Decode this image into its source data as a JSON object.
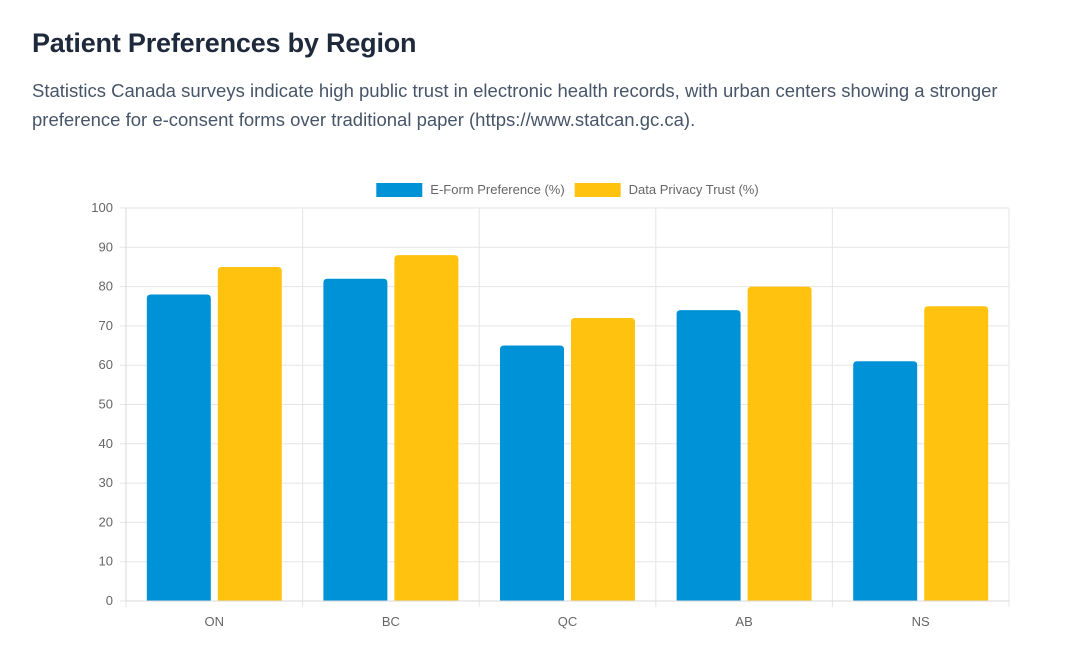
{
  "header": {
    "title": "Patient Preferences by Region",
    "description": "Statistics Canada surveys indicate high public trust in electronic health records, with urban centers showing a stronger preference for e-consent forms over traditional paper (https://www.statcan.gc.ca)."
  },
  "chart_data": {
    "type": "bar",
    "categories": [
      "ON",
      "BC",
      "QC",
      "AB",
      "NS"
    ],
    "series": [
      {
        "name": "E-Form Preference (%)",
        "values": [
          78,
          82,
          65,
          74,
          61
        ],
        "color": "#0092d6"
      },
      {
        "name": "Data Privacy Trust (%)",
        "values": [
          85,
          88,
          72,
          80,
          75
        ],
        "color": "#ffc30f"
      }
    ],
    "ylim": [
      0,
      100
    ],
    "yticks": [
      0,
      10,
      20,
      30,
      40,
      50,
      60,
      70,
      80,
      90,
      100
    ],
    "grid": true,
    "legend_position": "top",
    "title": "",
    "xlabel": "",
    "ylabel": ""
  }
}
